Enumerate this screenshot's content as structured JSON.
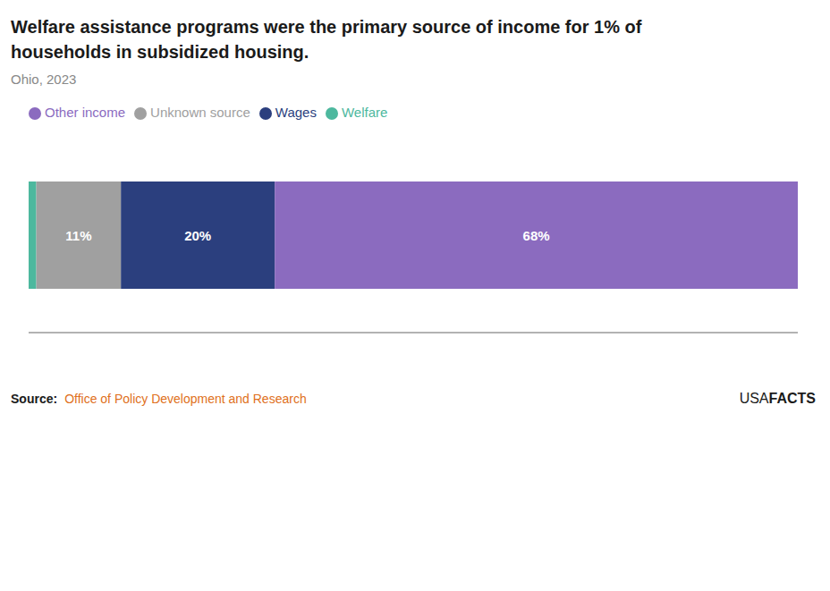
{
  "chart_data": {
    "type": "bar",
    "orientation": "horizontal",
    "stacked": true,
    "title": "Welfare assistance programs were the primary source of income for 1% of\nhouseholds in subsidized housing.",
    "subtitle": "Ohio, 2023",
    "categories": [
      null
    ],
    "series": [
      {
        "name": "Welfare",
        "color": "#4db89e",
        "values": [
          1
        ],
        "value_labels": [
          null
        ]
      },
      {
        "name": "Unknown source",
        "color": "#a0a0a0",
        "values": [
          11
        ],
        "value_labels": [
          "11%"
        ]
      },
      {
        "name": "Wages",
        "color": "#2b3f7e",
        "values": [
          20
        ],
        "value_labels": [
          "20%"
        ]
      },
      {
        "name": "Other income",
        "color": "#8b6bbf",
        "values": [
          68
        ],
        "value_labels": [
          "68%"
        ]
      }
    ],
    "data_labels": true,
    "xlim": [
      0,
      100
    ],
    "tick_labels": false,
    "grid": false,
    "legend": "upper left",
    "annotations": [
      {
        "text": "Source:"
      },
      {
        "text": "Office of Policy Development and Research",
        "color": "#e07020"
      },
      {
        "text": "USA"
      },
      {
        "text": "FACTS"
      }
    ]
  }
}
